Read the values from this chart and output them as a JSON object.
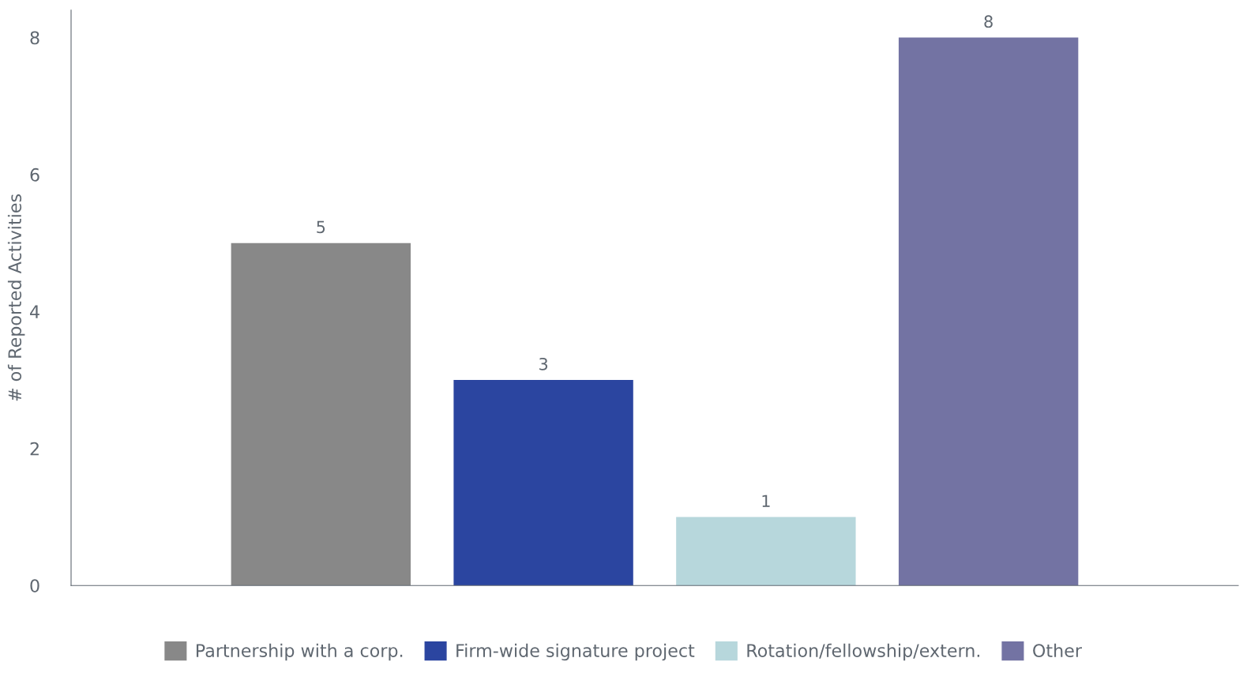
{
  "chart_data": {
    "type": "bar",
    "ylabel": "# of Reported Activities",
    "categories": [
      null
    ],
    "series": [
      {
        "name": "Partnership with a corp.",
        "color": "#888888",
        "values": [
          5
        ]
      },
      {
        "name": "Firm-wide signature project",
        "color": "#2b45a0",
        "values": [
          3
        ]
      },
      {
        "name": "Rotation/fellowship/extern.",
        "color": "#b7d7dc",
        "values": [
          1
        ]
      },
      {
        "name": "Other",
        "color": "#7373a3",
        "values": [
          8
        ]
      }
    ],
    "ylim": [
      0,
      8.4
    ],
    "yticks": [
      0,
      2,
      4,
      6,
      8
    ],
    "data_labels": true,
    "legend": "bottom",
    "grid": false
  }
}
